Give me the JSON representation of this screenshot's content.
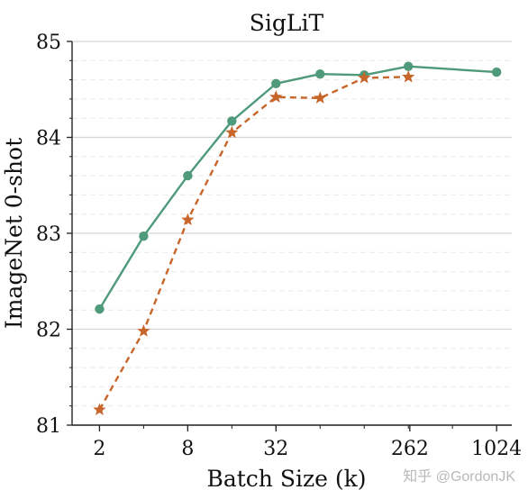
{
  "chart_data": {
    "type": "line",
    "title": "SigLiT",
    "xlabel": "Batch Size (k)",
    "ylabel": "ImageNet 0-shot",
    "x_scale": "log2",
    "x_ticks": [
      2,
      8,
      32,
      262,
      1024
    ],
    "x_tick_labels": [
      "2",
      "8",
      "32",
      "262",
      "1024"
    ],
    "y_ticks": [
      81,
      82,
      83,
      84,
      85
    ],
    "y_tick_labels": [
      "81",
      "82",
      "83",
      "84",
      "85"
    ],
    "xlim": [
      1.3,
      1300
    ],
    "ylim": [
      81,
      85
    ],
    "grid": "horizontal major and minor",
    "legend": "none",
    "series": [
      {
        "style": "solid",
        "marker": "circle",
        "color": "#4e9a7a",
        "x": [
          2,
          4,
          8,
          16,
          32,
          64,
          128,
          256,
          1024
        ],
        "y": [
          82.21,
          82.97,
          83.6,
          84.17,
          84.56,
          84.66,
          84.65,
          84.74,
          84.68
        ]
      },
      {
        "style": "dashed",
        "marker": "star",
        "color": "#c8662a",
        "x": [
          2,
          4,
          8,
          16,
          32,
          64,
          128,
          256
        ],
        "y": [
          81.16,
          81.98,
          83.14,
          84.05,
          84.42,
          84.41,
          84.62,
          84.63
        ]
      }
    ]
  },
  "watermark": "知乎 @GordonJK"
}
